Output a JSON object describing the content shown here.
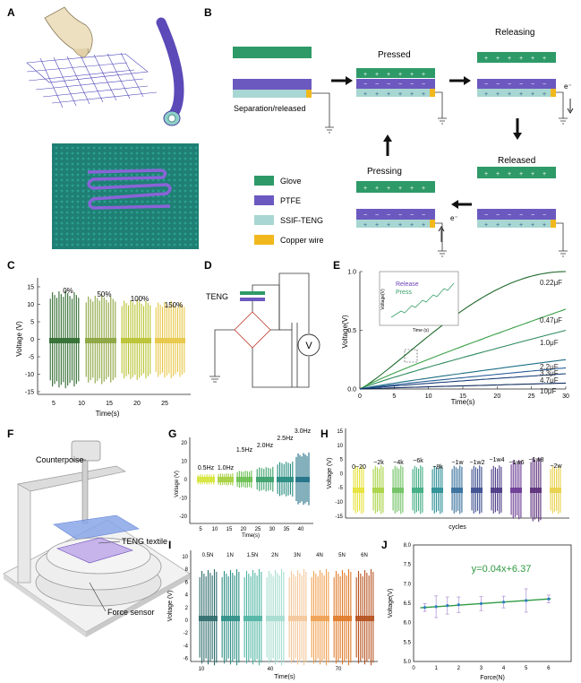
{
  "panels": {
    "A": "A",
    "B": "B",
    "C": "C",
    "D": "D",
    "E": "E",
    "F": "F",
    "G": "G",
    "H": "H",
    "I": "I",
    "J": "J"
  },
  "colors": {
    "glove": "#2e9a68",
    "ptfe": "#6c59c0",
    "ssif": "#a8d6d2",
    "copper": "#f1b81d",
    "textile_bg": "#1f7f74",
    "fiber": "#8a63d8",
    "ink": "#222222"
  },
  "panel_b": {
    "legend": [
      {
        "label": "Glove",
        "color": "#2e9a68"
      },
      {
        "label": "PTFE",
        "color": "#6c59c0"
      },
      {
        "label": "SSIF-TENG",
        "color": "#a8d6d2"
      },
      {
        "label": "Copper wire",
        "color": "#f1b81d"
      }
    ],
    "states": {
      "separation": "Separation/released",
      "pressed": "Pressed",
      "releasing": "Releasing",
      "released": "Released",
      "pressing": "Pressing"
    },
    "electron": "e⁻",
    "plus": "+",
    "minus": "−"
  },
  "panel_c": {
    "ylabel": "Voltage (V)",
    "xlabel": "Time(s)",
    "yticks": [
      "15",
      "10",
      "5",
      "0",
      "-5",
      "-10",
      "-15"
    ],
    "xticks": [
      "5",
      "10",
      "15",
      "20",
      "25"
    ],
    "strains": [
      "0%",
      "50%",
      "100%",
      "150%"
    ],
    "colors": [
      "#2f6b2e",
      "#8aa33c",
      "#b8c230",
      "#e8c645"
    ]
  },
  "panel_d": {
    "teng": "TENG",
    "meter": "V"
  },
  "chart_data": [
    {
      "panel": "E",
      "type": "line",
      "xlabel": "Time(s)",
      "ylabel": "Voltage(V)",
      "xlim": [
        0,
        30
      ],
      "ylim": [
        0,
        1.0
      ],
      "xticks": [
        "0",
        "5",
        "10",
        "15",
        "20",
        "25",
        "30"
      ],
      "yticks": [
        "0.0",
        "0.5",
        "1.0"
      ],
      "series": [
        {
          "name": "0.22μF",
          "end": 1.0
        },
        {
          "name": "0.47μF",
          "end": 0.68
        },
        {
          "name": "1.0μF",
          "end": 0.5
        },
        {
          "name": "2.2μF",
          "end": 0.25
        },
        {
          "name": "3.3μF",
          "end": 0.18
        },
        {
          "name": "4.7μF",
          "end": 0.13
        },
        {
          "name": "10μF",
          "end": 0.05
        }
      ],
      "inset": {
        "ylabel": "Voltage(V)",
        "xlabel": "Time (s)",
        "release": "Release",
        "press": "Press",
        "yticks": [
          "0.3",
          "0.25",
          "0.20",
          "0.15"
        ],
        "xticks": [
          "5.0",
          "5.5",
          "6.0",
          "6.5"
        ]
      }
    },
    {
      "panel": "J",
      "type": "scatter",
      "xlabel": "Force(N)",
      "ylabel": "Voltage(V)",
      "xlim": [
        0,
        7
      ],
      "ylim": [
        5.0,
        8.0
      ],
      "xticks": [
        "0",
        "1",
        "2",
        "3",
        "4",
        "5",
        "6"
      ],
      "yticks": [
        "5.0",
        "5.5",
        "6.0",
        "6.5",
        "7.0",
        "7.5",
        "8.0"
      ],
      "fit": "y=0.04x+6.37",
      "x": [
        0.5,
        1,
        1.5,
        2,
        3,
        4,
        5,
        6
      ],
      "y": [
        6.39,
        6.41,
        6.44,
        6.46,
        6.49,
        6.53,
        6.57,
        6.61
      ],
      "err": [
        0.1,
        0.28,
        0.22,
        0.2,
        0.18,
        0.15,
        0.3,
        0.1
      ]
    }
  ],
  "panel_f": {
    "counterpoise": "Counterpoise",
    "textile": "TENG textile",
    "sensor": "Force sensor"
  },
  "panel_g": {
    "ylabel": "Voltage (V)",
    "xlabel": "Time(s)",
    "yticks": [
      "20",
      "10",
      "0",
      "-10",
      "-20"
    ],
    "xticks": [
      "5",
      "10",
      "15",
      "20",
      "25",
      "30",
      "35",
      "40"
    ],
    "freqs": [
      "0.5Hz",
      "1.0Hz",
      "1.5Hz",
      "2.0Hz",
      "2.5Hz",
      "3.0Hz"
    ],
    "amps": [
      3,
      3.5,
      5,
      7,
      10,
      15
    ],
    "colors": [
      "#d6e43a",
      "#a6cf3f",
      "#6cbf52",
      "#3aa06a",
      "#238a7f",
      "#1f6f86"
    ]
  },
  "panel_h": {
    "ylabel": "Voltage (V)",
    "xlabel": "cycles",
    "yticks": [
      "15",
      "10",
      "5",
      "0",
      "-5",
      "-10",
      "-15"
    ],
    "labels": [
      "0~20",
      "~2k",
      "~4k",
      "~6k",
      "~8k",
      "~1w",
      "~1w2",
      "~1w4",
      "~1w6",
      "~1w8",
      "~2w"
    ],
    "colors": [
      "#e6e23a",
      "#a9d345",
      "#6fc163",
      "#3eac82",
      "#2c8f96",
      "#356e9a",
      "#3b4c8f",
      "#4b3a86",
      "#6a3a93",
      "#5a2d79",
      "#e8d04a"
    ],
    "amps": [
      9,
      9,
      9,
      9,
      9,
      9,
      9,
      9,
      11,
      12,
      9
    ]
  },
  "panel_i": {
    "ylabel": "Voltage (V)",
    "xlabel": "Time(s)",
    "yticks": [
      "10",
      "8",
      "6",
      "4",
      "2",
      "0",
      "-2",
      "-4",
      "-6"
    ],
    "xticks": [
      "10",
      "40",
      "70"
    ],
    "labels": [
      "0.5N",
      "1N",
      "1.5N",
      "2N",
      "3N",
      "4N",
      "5N",
      "6N"
    ],
    "colors": [
      "#2f6b6b",
      "#2e8f86",
      "#4fb4a4",
      "#a6dccf",
      "#f4c79a",
      "#f0a050",
      "#e07a28",
      "#b4501c"
    ],
    "amps": [
      8,
      8,
      8,
      8,
      8,
      8,
      8,
      8
    ]
  }
}
